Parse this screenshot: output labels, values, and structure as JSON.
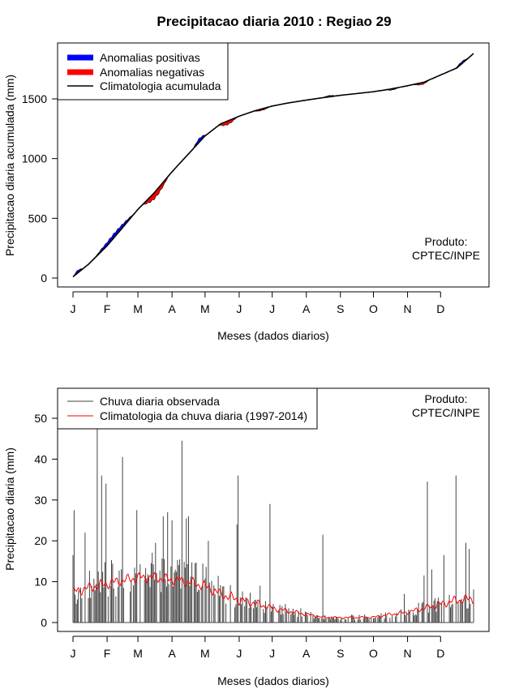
{
  "title": "Precipitacao diaria 2010 : Regiao 29",
  "credit": [
    "Produto:",
    "CPTEC/INPE"
  ],
  "month_labels": [
    "J",
    "F",
    "M",
    "A",
    "M",
    "J",
    "J",
    "A",
    "S",
    "O",
    "N",
    "D"
  ],
  "colors": {
    "positive": "#0000ff",
    "negative": "#ff0000",
    "climatology_line": "#000000",
    "observed": "#444444",
    "climatology_daily": "#ff0000"
  },
  "chart_data": [
    {
      "type": "area",
      "title": "Precipitacao diaria 2010 : Regiao 29",
      "xlabel": "Meses (dados diarios)",
      "ylabel": "Precipitacao diaria acumulada (mm)",
      "xlim": [
        1,
        365
      ],
      "ylim": [
        0,
        1900
      ],
      "yticks": [
        0,
        500,
        1000,
        1500
      ],
      "legend": {
        "position": "top-left",
        "entries": [
          "Anomalias positivas",
          "Anomalias negativas",
          "Climatologia acumulada"
        ]
      },
      "climatology_knots": {
        "day": [
          1,
          15,
          32,
          45,
          60,
          75,
          91,
          106,
          121,
          135,
          152,
          166,
          182,
          196,
          213,
          228,
          244,
          259,
          274,
          288,
          305,
          320,
          335,
          350,
          365
        ],
        "mm": [
          10,
          115,
          270,
          410,
          575,
          715,
          890,
          1040,
          1190,
          1290,
          1355,
          1400,
          1440,
          1465,
          1490,
          1510,
          1530,
          1545,
          1560,
          1580,
          1610,
          1640,
          1700,
          1760,
          1880
        ]
      },
      "anomalies": [
        {
          "kind": "positive",
          "start": 1,
          "end": 10,
          "amp": 25
        },
        {
          "kind": "positive",
          "start": 20,
          "end": 58,
          "amp": 40
        },
        {
          "kind": "negative",
          "start": 64,
          "end": 88,
          "amp": -60
        },
        {
          "kind": "positive",
          "start": 110,
          "end": 122,
          "amp": 35
        },
        {
          "kind": "negative",
          "start": 133,
          "end": 150,
          "amp": -35
        },
        {
          "kind": "negative",
          "start": 165,
          "end": 180,
          "amp": -15
        },
        {
          "kind": "positive",
          "start": 228,
          "end": 240,
          "amp": 12
        },
        {
          "kind": "negative",
          "start": 285,
          "end": 298,
          "amp": -12
        },
        {
          "kind": "negative",
          "start": 310,
          "end": 325,
          "amp": -18
        },
        {
          "kind": "positive",
          "start": 348,
          "end": 360,
          "amp": 20
        }
      ]
    },
    {
      "type": "line",
      "xlabel": "Meses (dados diarios)",
      "ylabel": "Precipitacao diaria (mm)",
      "xlim": [
        1,
        365
      ],
      "ylim": [
        0,
        50
      ],
      "yticks": [
        0,
        10,
        20,
        30,
        40,
        50
      ],
      "legend": {
        "position": "top-left",
        "entries": [
          "Chuva diaria observada",
          "Climatologia da chuva diaria (1997-2014)"
        ]
      },
      "observed_peaks": [
        {
          "day": 1,
          "mm": 16.5
        },
        {
          "day": 2,
          "mm": 27.5
        },
        {
          "day": 12,
          "mm": 22
        },
        {
          "day": 23,
          "mm": 47.5
        },
        {
          "day": 27,
          "mm": 36
        },
        {
          "day": 31,
          "mm": 34
        },
        {
          "day": 46,
          "mm": 40.5
        },
        {
          "day": 59,
          "mm": 27.5
        },
        {
          "day": 76,
          "mm": 19.5
        },
        {
          "day": 83,
          "mm": 26
        },
        {
          "day": 87,
          "mm": 27
        },
        {
          "day": 91,
          "mm": 25
        },
        {
          "day": 100,
          "mm": 44.5
        },
        {
          "day": 104,
          "mm": 25.5
        },
        {
          "day": 106,
          "mm": 26
        },
        {
          "day": 124,
          "mm": 20
        },
        {
          "day": 150,
          "mm": 24
        },
        {
          "day": 151,
          "mm": 36
        },
        {
          "day": 171,
          "mm": 9
        },
        {
          "day": 180,
          "mm": 29
        },
        {
          "day": 228,
          "mm": 21.5
        },
        {
          "day": 302,
          "mm": 7
        },
        {
          "day": 320,
          "mm": 11.5
        },
        {
          "day": 323,
          "mm": 34.5
        },
        {
          "day": 327,
          "mm": 13
        },
        {
          "day": 338,
          "mm": 16.5
        },
        {
          "day": 349,
          "mm": 36
        },
        {
          "day": 358,
          "mm": 19.5
        },
        {
          "day": 361,
          "mm": 18
        }
      ],
      "climatology_daily_knots": {
        "day": [
          1,
          15,
          32,
          50,
          60,
          75,
          90,
          105,
          120,
          135,
          152,
          170,
          182,
          196,
          213,
          228,
          244,
          259,
          274,
          290,
          305,
          320,
          335,
          350,
          365
        ],
        "mm": [
          7.5,
          8.5,
          9.5,
          10.5,
          11,
          11,
          10.5,
          10,
          9,
          7,
          5.5,
          4.5,
          3.5,
          2.8,
          2,
          1.3,
          1.2,
          1.2,
          1.3,
          2,
          2.5,
          3.5,
          4.5,
          5.5,
          5.8
        ]
      }
    }
  ]
}
